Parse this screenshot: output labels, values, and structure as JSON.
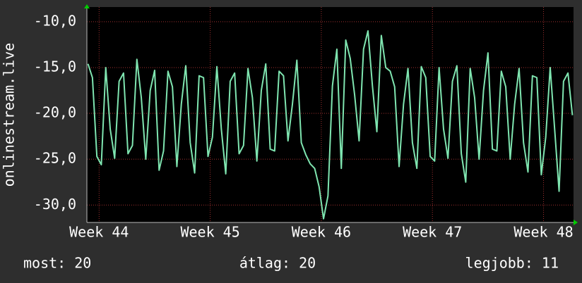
{
  "chart_data": {
    "type": "line",
    "y_label": "onlinestream.live",
    "color": "#7fe5b0",
    "grid": true,
    "xlim": [
      43.89,
      48.27
    ],
    "ylim": [
      -31.9,
      -8.4
    ],
    "xticks": [
      {
        "value": 44,
        "label": "Week 44"
      },
      {
        "value": 45,
        "label": "Week 45"
      },
      {
        "value": 46,
        "label": "Week 46"
      },
      {
        "value": 47,
        "label": "Week 47"
      },
      {
        "value": 48,
        "label": "Week 48"
      }
    ],
    "yticks": [
      {
        "value": -10,
        "label": "-10,0"
      },
      {
        "value": -15,
        "label": "-15,0"
      },
      {
        "value": -20,
        "label": "-20,0"
      },
      {
        "value": -25,
        "label": "-25,0"
      },
      {
        "value": -30,
        "label": "-30,0"
      }
    ],
    "x": [
      43.9,
      43.94,
      43.98,
      44.02,
      44.06,
      44.1,
      44.14,
      44.18,
      44.22,
      44.26,
      44.3,
      44.34,
      44.38,
      44.42,
      44.46,
      44.5,
      44.54,
      44.58,
      44.62,
      44.66,
      44.7,
      44.74,
      44.78,
      44.82,
      44.86,
      44.9,
      44.94,
      44.98,
      45.02,
      45.06,
      45.1,
      45.14,
      45.18,
      45.22,
      45.26,
      45.3,
      45.34,
      45.38,
      45.42,
      45.46,
      45.5,
      45.54,
      45.58,
      45.62,
      45.66,
      45.7,
      45.74,
      45.78,
      45.82,
      45.86,
      45.9,
      45.94,
      45.98,
      46.02,
      46.06,
      46.1,
      46.14,
      46.18,
      46.22,
      46.26,
      46.3,
      46.34,
      46.38,
      46.42,
      46.46,
      46.5,
      46.54,
      46.58,
      46.62,
      46.66,
      46.7,
      46.74,
      46.78,
      46.82,
      46.86,
      46.9,
      46.94,
      46.98,
      47.02,
      47.06,
      47.1,
      47.14,
      47.18,
      47.22,
      47.26,
      47.3,
      47.34,
      47.38,
      47.42,
      47.46,
      47.5,
      47.54,
      47.58,
      47.62,
      47.66,
      47.7,
      47.74,
      47.78,
      47.82,
      47.86,
      47.9,
      47.94,
      47.98,
      48.02,
      48.06,
      48.1,
      48.14,
      48.18,
      48.22,
      48.26
    ],
    "values": [
      -14.6,
      -16.1,
      -24.7,
      -25.6,
      -15.0,
      -21.7,
      -24.9,
      -16.5,
      -15.6,
      -24.4,
      -23.5,
      -14.1,
      -18.3,
      -25.0,
      -17.5,
      -15.3,
      -26.2,
      -24.1,
      -15.4,
      -17.1,
      -25.8,
      -19.0,
      -14.8,
      -23.2,
      -26.5,
      -15.9,
      -16.1,
      -24.7,
      -22.6,
      -14.9,
      -21.7,
      -26.6,
      -16.5,
      -15.6,
      -24.4,
      -23.5,
      -15.1,
      -18.3,
      -25.2,
      -17.5,
      -14.6,
      -23.9,
      -24.1,
      -15.4,
      -15.9,
      -23.0,
      -19.0,
      -14.2,
      -23.2,
      -24.5,
      -25.5,
      -26.0,
      -28.0,
      -31.5,
      -29.0,
      -17.0,
      -13.0,
      -26.0,
      -12.0,
      -14.0,
      -18.0,
      -23.0,
      -13.0,
      -11.0,
      -17.0,
      -22.0,
      -11.5,
      -15.0,
      -15.4,
      -17.1,
      -25.8,
      -19.0,
      -15.1,
      -23.2,
      -26.0,
      -14.9,
      -16.1,
      -24.7,
      -25.2,
      -15.0,
      -21.7,
      -24.9,
      -16.5,
      -14.8,
      -24.4,
      -27.5,
      -15.1,
      -18.3,
      -25.0,
      -17.5,
      -13.4,
      -23.9,
      -24.1,
      -15.4,
      -17.1,
      -25.0,
      -19.0,
      -15.1,
      -23.2,
      -26.4,
      -15.9,
      -16.1,
      -26.7,
      -22.6,
      -15.0,
      -21.7,
      -28.5,
      -16.5,
      -15.6,
      -20.2
    ],
    "footer": [
      "most: 20",
      "átlag: 20",
      "legjobb: 11"
    ]
  }
}
